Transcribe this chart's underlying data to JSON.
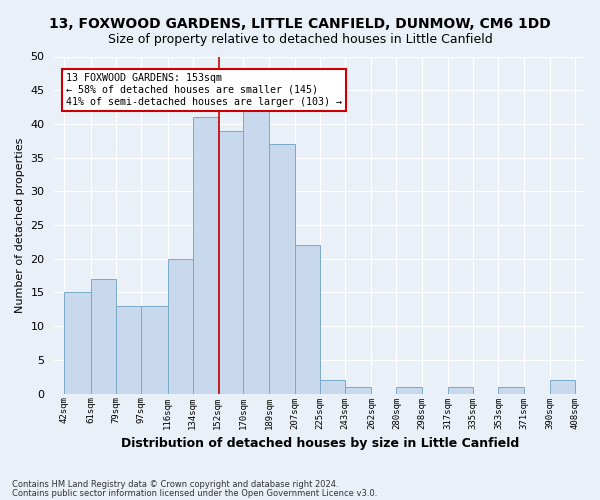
{
  "title1": "13, FOXWOOD GARDENS, LITTLE CANFIELD, DUNMOW, CM6 1DD",
  "title2": "Size of property relative to detached houses in Little Canfield",
  "xlabel": "Distribution of detached houses by size in Little Canfield",
  "ylabel": "Number of detached properties",
  "footnote1": "Contains HM Land Registry data © Crown copyright and database right 2024.",
  "footnote2": "Contains public sector information licensed under the Open Government Licence v3.0.",
  "annotation_line1": "13 FOXWOOD GARDENS: 153sqm",
  "annotation_line2": "← 58% of detached houses are smaller (145)",
  "annotation_line3": "41% of semi-detached houses are larger (103) →",
  "bar_color": "#c9d9ed",
  "bar_edge_color": "#7aaac8",
  "bar_left_edges": [
    42,
    61,
    79,
    97,
    116,
    134,
    152,
    170,
    189,
    207,
    225,
    243,
    262,
    280,
    298,
    317,
    335,
    353,
    371,
    390
  ],
  "bar_widths": [
    19,
    18,
    18,
    19,
    18,
    18,
    18,
    19,
    18,
    18,
    18,
    19,
    18,
    18,
    19,
    18,
    18,
    18,
    19,
    18
  ],
  "bar_heights": [
    15,
    17,
    13,
    13,
    20,
    41,
    39,
    42,
    37,
    22,
    2,
    1,
    0,
    1,
    0,
    1,
    0,
    1,
    0,
    2
  ],
  "tick_labels": [
    "42sqm",
    "61sqm",
    "79sqm",
    "97sqm",
    "116sqm",
    "134sqm",
    "152sqm",
    "170sqm",
    "189sqm",
    "207sqm",
    "225sqm",
    "243sqm",
    "262sqm",
    "280sqm",
    "298sqm",
    "317sqm",
    "335sqm",
    "353sqm",
    "371sqm",
    "390sqm",
    "408sqm"
  ],
  "tick_positions": [
    42,
    61,
    79,
    97,
    116,
    134,
    152,
    170,
    189,
    207,
    225,
    243,
    262,
    280,
    298,
    317,
    335,
    353,
    371,
    390,
    408
  ],
  "red_line_x": 153,
  "ylim": [
    0,
    50
  ],
  "xlim": [
    35,
    415
  ],
  "bg_color": "#eaf0f8",
  "grid_color": "#ffffff",
  "annotation_box_color": "#ffffff",
  "annotation_box_edge": "#cc0000",
  "title1_fontsize": 10,
  "title2_fontsize": 9
}
